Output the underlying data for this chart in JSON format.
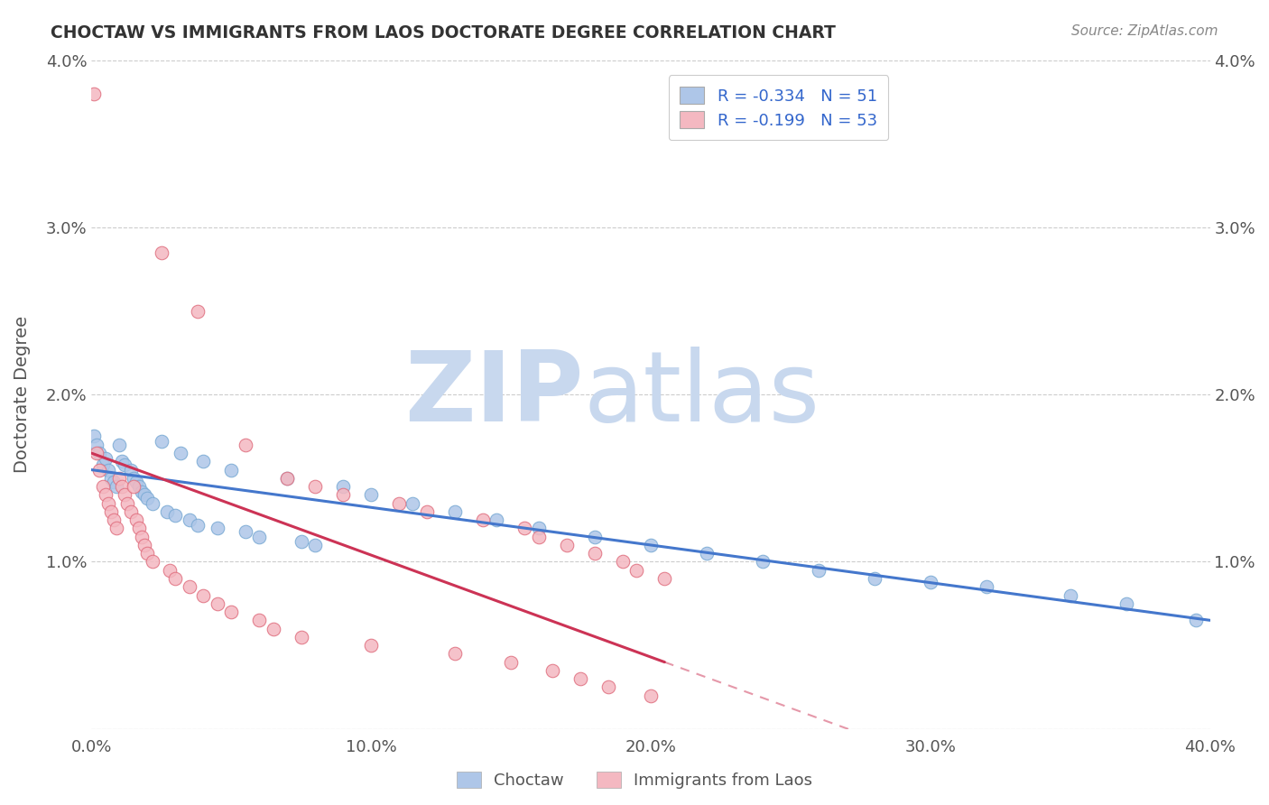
{
  "title": "CHOCTAW VS IMMIGRANTS FROM LAOS DOCTORATE DEGREE CORRELATION CHART",
  "source_text": "Source: ZipAtlas.com",
  "ylabel": "Doctorate Degree",
  "xlabel": "",
  "xlim": [
    0.0,
    0.4
  ],
  "ylim": [
    0.0,
    0.04
  ],
  "xtick_labels": [
    "0.0%",
    "10.0%",
    "20.0%",
    "30.0%",
    "40.0%"
  ],
  "xtick_vals": [
    0.0,
    0.1,
    0.2,
    0.3,
    0.4
  ],
  "ytick_labels": [
    "",
    "1.0%",
    "2.0%",
    "3.0%",
    "4.0%"
  ],
  "ytick_vals": [
    0.0,
    0.01,
    0.02,
    0.03,
    0.04
  ],
  "legend_entries": [
    {
      "label": "R = -0.334   N = 51",
      "color": "#aec6e8",
      "text_color": "#3366cc"
    },
    {
      "label": "R = -0.199   N = 53",
      "color": "#f4b8c1",
      "text_color": "#3366cc"
    }
  ],
  "watermark_zip": "ZIP",
  "watermark_atlas": "atlas",
  "watermark_color_zip": "#c8d8ee",
  "watermark_color_atlas": "#c8d8ee",
  "series1_color": "#aec6e8",
  "series1_edge": "#7aaad4",
  "series2_color": "#f4b8c1",
  "series2_edge": "#e07080",
  "line1_color": "#4477cc",
  "line2_color": "#cc3355",
  "background_color": "#ffffff",
  "grid_color": "#cccccc",
  "title_color": "#333333",
  "choctaw_x": [
    0.001,
    0.002,
    0.003,
    0.004,
    0.005,
    0.006,
    0.007,
    0.008,
    0.009,
    0.01,
    0.011,
    0.012,
    0.014,
    0.015,
    0.016,
    0.017,
    0.018,
    0.019,
    0.02,
    0.022,
    0.025,
    0.027,
    0.03,
    0.032,
    0.035,
    0.038,
    0.04,
    0.045,
    0.05,
    0.055,
    0.06,
    0.07,
    0.075,
    0.08,
    0.09,
    0.1,
    0.115,
    0.13,
    0.145,
    0.16,
    0.18,
    0.2,
    0.22,
    0.24,
    0.26,
    0.28,
    0.3,
    0.32,
    0.35,
    0.37,
    0.395
  ],
  "choctaw_y": [
    0.0175,
    0.017,
    0.0165,
    0.0158,
    0.0162,
    0.0155,
    0.015,
    0.0148,
    0.0145,
    0.017,
    0.016,
    0.0158,
    0.0155,
    0.015,
    0.0148,
    0.0145,
    0.0142,
    0.014,
    0.0138,
    0.0135,
    0.0172,
    0.013,
    0.0128,
    0.0165,
    0.0125,
    0.0122,
    0.016,
    0.012,
    0.0155,
    0.0118,
    0.0115,
    0.015,
    0.0112,
    0.011,
    0.0145,
    0.014,
    0.0135,
    0.013,
    0.0125,
    0.012,
    0.0115,
    0.011,
    0.0105,
    0.01,
    0.0095,
    0.009,
    0.0088,
    0.0085,
    0.008,
    0.0075,
    0.0065
  ],
  "laos_x": [
    0.001,
    0.002,
    0.003,
    0.004,
    0.005,
    0.006,
    0.007,
    0.008,
    0.009,
    0.01,
    0.011,
    0.012,
    0.013,
    0.014,
    0.015,
    0.016,
    0.017,
    0.018,
    0.019,
    0.02,
    0.022,
    0.025,
    0.028,
    0.03,
    0.035,
    0.038,
    0.04,
    0.045,
    0.05,
    0.055,
    0.06,
    0.065,
    0.07,
    0.075,
    0.08,
    0.09,
    0.1,
    0.11,
    0.12,
    0.13,
    0.14,
    0.15,
    0.155,
    0.16,
    0.165,
    0.17,
    0.175,
    0.18,
    0.185,
    0.19,
    0.195,
    0.2,
    0.205
  ],
  "laos_y": [
    0.038,
    0.0165,
    0.0155,
    0.0145,
    0.014,
    0.0135,
    0.013,
    0.0125,
    0.012,
    0.015,
    0.0145,
    0.014,
    0.0135,
    0.013,
    0.0145,
    0.0125,
    0.012,
    0.0115,
    0.011,
    0.0105,
    0.01,
    0.0285,
    0.0095,
    0.009,
    0.0085,
    0.025,
    0.008,
    0.0075,
    0.007,
    0.017,
    0.0065,
    0.006,
    0.015,
    0.0055,
    0.0145,
    0.014,
    0.005,
    0.0135,
    0.013,
    0.0045,
    0.0125,
    0.004,
    0.012,
    0.0115,
    0.0035,
    0.011,
    0.003,
    0.0105,
    0.0025,
    0.01,
    0.0095,
    0.002,
    0.009
  ],
  "line1_x_start": 0.0,
  "line1_x_end": 0.4,
  "line1_y_start": 0.0155,
  "line1_y_end": 0.0065,
  "line2_x_start": 0.0,
  "line2_x_end": 0.205,
  "line2_y_start": 0.0165,
  "line2_y_end": 0.004,
  "bottom_legend": [
    {
      "label": "Choctaw",
      "color": "#aec6e8"
    },
    {
      "label": "Immigrants from Laos",
      "color": "#f4b8c1"
    }
  ]
}
